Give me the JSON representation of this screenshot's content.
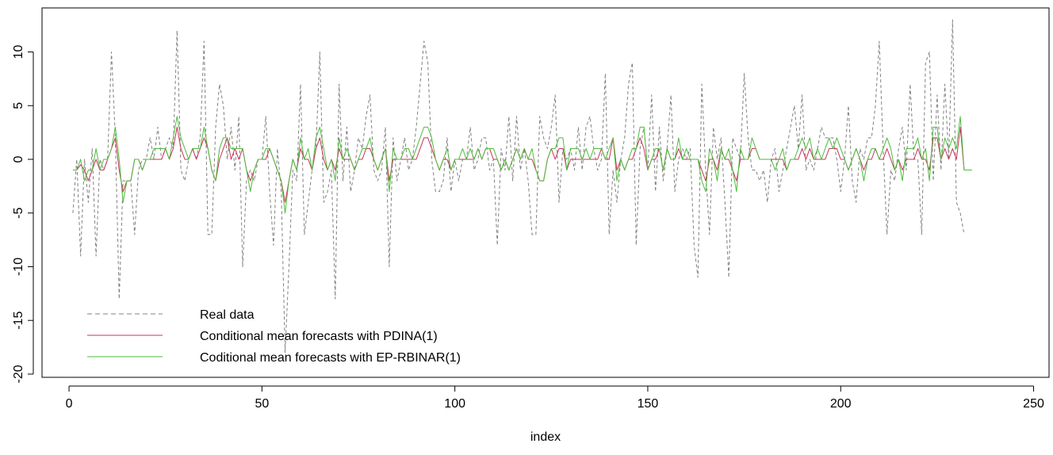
{
  "chart_data": {
    "type": "line",
    "title": "",
    "xlabel": "index",
    "ylabel": "",
    "xlim": [
      -7,
      254
    ],
    "ylim": [
      -20.3,
      14.1
    ],
    "x_ticks": [
      0,
      50,
      100,
      150,
      200,
      250
    ],
    "y_ticks": [
      -20,
      -15,
      -10,
      -5,
      0,
      5,
      10
    ],
    "legend_position": "bottom-left",
    "x_start": 1,
    "series": [
      {
        "name": "Real data",
        "color": "#808080",
        "style": "dashed",
        "values": [
          -5,
          0,
          -9,
          0,
          -4,
          1,
          -9,
          0,
          -1,
          0,
          10,
          2,
          -13,
          -2,
          -2,
          -2,
          -7,
          -1,
          0,
          0,
          2,
          0,
          3,
          0,
          1,
          2,
          1,
          12,
          -1,
          -2,
          0,
          1,
          0,
          2,
          11,
          -7,
          -7,
          3,
          7,
          5,
          0,
          3,
          -1,
          4,
          -10,
          -2,
          -1,
          -2,
          0,
          0,
          4,
          -3,
          -8,
          1,
          -3,
          -18,
          -10,
          -1,
          -2,
          7,
          -7,
          -4,
          -1,
          1,
          10,
          -4,
          -3,
          -1,
          -13,
          7,
          -2,
          3,
          -3,
          -1,
          2,
          1,
          4,
          6,
          -1,
          -2,
          -1,
          3,
          -10,
          2,
          -2,
          0,
          2,
          -1,
          0,
          3,
          7,
          11,
          9,
          0,
          -3,
          -3,
          -2,
          2,
          -3,
          0,
          -2,
          0,
          0,
          3,
          -1,
          0,
          2,
          2,
          -1,
          0,
          -8,
          1,
          -1,
          4,
          -2,
          4,
          -1,
          1,
          -2,
          -7,
          -7,
          4,
          2,
          1,
          3,
          6,
          -4,
          1,
          0,
          1,
          -1,
          3,
          -1,
          3,
          4,
          1,
          -1,
          0,
          8,
          -7,
          -1,
          -4,
          0,
          2,
          7,
          9,
          -8,
          1,
          3,
          -1,
          6,
          -3,
          3,
          -2,
          1,
          6,
          -3,
          0,
          1,
          0,
          1,
          -8,
          -11,
          7,
          -1,
          -7,
          3,
          0,
          2,
          -4,
          -11,
          2,
          1,
          0,
          8,
          2,
          -1,
          -1,
          -2,
          -1,
          -4,
          0,
          1,
          -3,
          -1,
          1,
          3,
          5,
          1,
          6,
          -1,
          0,
          -1,
          1,
          3,
          2,
          2,
          2,
          0,
          -3,
          0,
          5,
          -2,
          -4,
          1,
          0,
          2,
          2,
          5,
          11,
          1,
          -7,
          -1,
          -2,
          1,
          3,
          -1,
          7,
          0,
          0,
          -7,
          9,
          10,
          -2,
          6,
          -1,
          7,
          0,
          13,
          -4,
          -5,
          -7
        ]
      },
      {
        "name": "Conditional mean forecasts with PDINA(1)",
        "color": "#c8325a",
        "style": "solid",
        "values": [
          -1,
          -1,
          -0.5,
          -1,
          -2,
          -1,
          0,
          -1,
          -1,
          0,
          1,
          2,
          -1,
          -3,
          -2,
          -2,
          0,
          0,
          -1,
          0,
          0,
          0,
          0,
          0,
          1,
          0,
          1,
          3,
          1,
          0,
          0,
          1,
          0,
          1,
          2,
          1,
          -1,
          -2,
          0,
          1,
          2,
          0,
          1,
          0,
          1,
          -1,
          -2,
          -1,
          0,
          0,
          0,
          1,
          0,
          -1,
          -2,
          -4,
          -2,
          0,
          -1,
          1,
          0,
          0,
          -1,
          1,
          2,
          0,
          -1,
          0,
          -1,
          1,
          0,
          0,
          0,
          -1,
          0,
          0,
          1,
          1,
          0,
          -1,
          0,
          1,
          -2,
          0,
          0,
          0,
          0,
          0,
          0,
          0,
          1,
          2,
          2,
          1,
          0,
          -1,
          0,
          0,
          -1,
          0,
          0,
          0,
          0,
          0,
          0,
          1,
          0,
          1,
          1,
          0,
          0,
          -1,
          0,
          -1,
          0,
          1,
          0,
          1,
          0,
          0,
          -1,
          -2,
          -2,
          0,
          1,
          0,
          1,
          1,
          -1,
          0,
          0,
          0,
          0,
          0,
          0,
          0,
          0,
          1,
          0,
          0,
          2,
          -1,
          0,
          -1,
          0,
          0,
          1,
          2,
          1,
          -1,
          0,
          0,
          1,
          -1,
          1,
          0,
          0,
          1,
          0,
          0,
          0,
          0,
          0,
          -1,
          -2,
          0,
          0,
          -1,
          1,
          0,
          0,
          -1,
          -2,
          0,
          0,
          0,
          1,
          1,
          0,
          0,
          0,
          0,
          0,
          0,
          0,
          -1,
          0,
          0,
          0,
          1,
          0,
          1,
          0,
          0,
          0,
          0,
          1,
          1,
          1,
          0,
          0,
          -1,
          0,
          1,
          0,
          -1,
          0,
          0,
          1,
          0,
          0,
          1,
          0,
          -1,
          0,
          -1,
          0,
          0,
          0,
          1,
          0,
          0,
          -1,
          2,
          2,
          0,
          1,
          0,
          1,
          0,
          3,
          -1,
          -1,
          -1
        ]
      },
      {
        "name": "Coditional mean forecasts with EP-RBINAR(1)",
        "color": "#4dbb3c",
        "style": "solid",
        "values": [
          -1,
          -1,
          0,
          -2,
          -1,
          -1,
          1,
          -1,
          0,
          0,
          1,
          3,
          0,
          -4,
          -2,
          -2,
          0,
          0,
          -1,
          0,
          0,
          1,
          1,
          1,
          1,
          0,
          2,
          4,
          2,
          1,
          0,
          1,
          1,
          1,
          3,
          1,
          -1,
          -2,
          1,
          2,
          2,
          1,
          1,
          1,
          1,
          -1,
          -3,
          -1,
          0,
          0,
          1,
          1,
          0,
          -1,
          -2,
          -5,
          -2,
          0,
          -1,
          2,
          0,
          1,
          -1,
          2,
          3,
          1,
          -1,
          0,
          -2,
          2,
          0,
          1,
          0,
          -1,
          0,
          1,
          1,
          2,
          0,
          -1,
          0,
          1,
          -3,
          1,
          0,
          0,
          1,
          1,
          0,
          1,
          2,
          3,
          3,
          2,
          0,
          -1,
          0,
          1,
          -1,
          0,
          0,
          1,
          0,
          1,
          0,
          1,
          0,
          1,
          1,
          1,
          0,
          -1,
          0,
          -1,
          0,
          1,
          0,
          1,
          0,
          1,
          -1,
          -2,
          -2,
          0,
          1,
          1,
          2,
          2,
          -1,
          1,
          1,
          1,
          0,
          1,
          0,
          1,
          1,
          1,
          0,
          1,
          2,
          -2,
          0,
          -1,
          0,
          1,
          1,
          3,
          3,
          -1,
          0,
          1,
          1,
          -1,
          1,
          0,
          0,
          2,
          0,
          1,
          0,
          0,
          0,
          -2,
          -3,
          1,
          0,
          -2,
          1,
          0,
          1,
          -1,
          -3,
          1,
          0,
          0,
          2,
          1,
          0,
          0,
          0,
          0,
          -1,
          0,
          1,
          -1,
          0,
          0,
          1,
          2,
          1,
          2,
          0,
          1,
          0,
          1,
          2,
          1,
          2,
          1,
          0,
          -1,
          0,
          1,
          0,
          -2,
          0,
          1,
          1,
          0,
          1,
          2,
          1,
          -1,
          0,
          -2,
          1,
          1,
          1,
          2,
          0,
          1,
          -2,
          3,
          3,
          0,
          2,
          1,
          2,
          1,
          4,
          -1,
          -1,
          -1
        ]
      }
    ]
  }
}
